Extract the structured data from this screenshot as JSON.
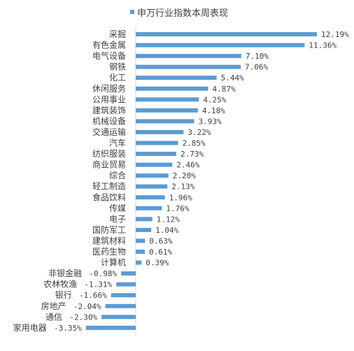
{
  "chart_data": {
    "type": "bar",
    "orientation": "horizontal",
    "legend": [
      "申万行业指数本周表现"
    ],
    "legend_position": "top",
    "grid": false,
    "unit": "%",
    "categories": [
      "采掘",
      "有色金属",
      "电气设备",
      "钢铁",
      "化工",
      "休闲服务",
      "公用事业",
      "建筑装饰",
      "机械设备",
      "交通运输",
      "汽车",
      "纺织服装",
      "商业贸易",
      "综合",
      "轻工制造",
      "食品饮料",
      "传媒",
      "电子",
      "国防军工",
      "建筑材料",
      "医药生物",
      "计算机",
      "非银金融",
      "农林牧渔",
      "银行",
      "房地产",
      "通信",
      "家用电器"
    ],
    "values": [
      12.19,
      11.36,
      7.1,
      7.06,
      5.44,
      4.87,
      4.25,
      4.18,
      3.93,
      3.22,
      2.85,
      2.73,
      2.46,
      2.2,
      2.13,
      1.96,
      1.76,
      1.12,
      1.04,
      0.63,
      0.61,
      0.39,
      -0.98,
      -1.31,
      -1.66,
      -2.04,
      -2.3,
      -3.35
    ],
    "value_labels": [
      "12.19%",
      "11.36%",
      "7.10%",
      "7.06%",
      "5.44%",
      "4.87%",
      "4.25%",
      "4.18%",
      "3.93%",
      "3.22%",
      "2.85%",
      "2.73%",
      "2.46%",
      "2.20%",
      "2.13%",
      "1.96%",
      "1.76%",
      "1.12%",
      "1.04%",
      "0.63%",
      "0.61%",
      "0.39%",
      "-0.98%",
      "-1.31%",
      "-1.66%",
      "-2.04%",
      "-2.30%",
      "-3.35%"
    ],
    "bar_color": "#5B9BD5"
  }
}
